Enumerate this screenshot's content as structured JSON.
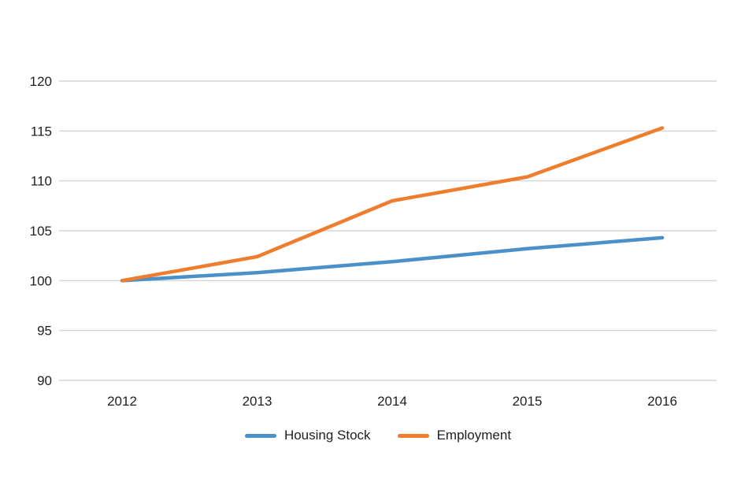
{
  "chart_data": {
    "type": "line",
    "x": [
      "2012",
      "2013",
      "2014",
      "2015",
      "2016"
    ],
    "series": [
      {
        "name": "Housing Stock",
        "color": "#4a90c9",
        "values": [
          100,
          100.8,
          101.9,
          103.2,
          104.3
        ]
      },
      {
        "name": "Employment",
        "color": "#ee7d2e",
        "values": [
          100,
          102.4,
          108.0,
          110.4,
          115.3
        ]
      }
    ],
    "title": "",
    "xlabel": "",
    "ylabel": "",
    "ylim": [
      90,
      120
    ],
    "ytick_step": 5,
    "yticks": [
      90,
      95,
      100,
      105,
      110,
      115,
      120
    ],
    "grid": true,
    "legend_position": "bottom"
  },
  "colors": {
    "background": "#ffffff",
    "gridline": "#d6d6d6",
    "tick_text": "#1f1f1f"
  }
}
